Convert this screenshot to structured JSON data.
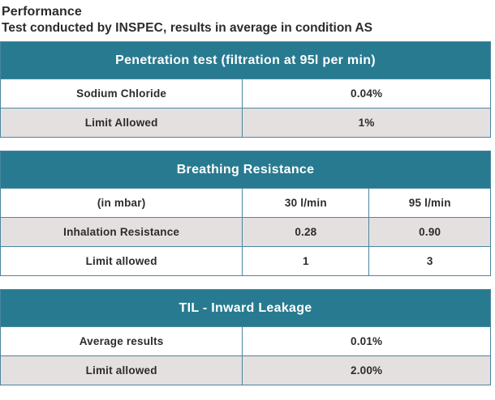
{
  "page": {
    "title": "Performance",
    "subtitle_prefix": "Test conducted by ",
    "subtitle_emphasis": "INSPEC,",
    "subtitle_suffix": " results in average in condition AS"
  },
  "colors": {
    "header_teal": "#287a90",
    "border_blue": "#4a86a0",
    "shaded_row_gray": "#e4e0e0",
    "text_dark": "#2e2b2c",
    "header_text": "#ffffff"
  },
  "tables": [
    {
      "title": "Penetration test (filtration at 95l per min)",
      "rows": [
        {
          "cells": [
            "Sodium Chloride",
            "0.04%"
          ],
          "shaded": false
        },
        {
          "cells": [
            "Limit Allowed",
            "1%"
          ],
          "shaded": true
        }
      ]
    },
    {
      "title": "Breathing Resistance",
      "rows": [
        {
          "cells": [
            "(in mbar)",
            "30 l/min",
            "95 l/min"
          ],
          "shaded": false
        },
        {
          "cells": [
            "Inhalation Resistance",
            "0.28",
            "0.90"
          ],
          "shaded": true
        },
        {
          "cells": [
            "Limit allowed",
            "1",
            "3"
          ],
          "shaded": false
        }
      ]
    },
    {
      "title": "TIL - Inward Leakage",
      "rows": [
        {
          "cells": [
            "Average results",
            "0.01%"
          ],
          "shaded": false
        },
        {
          "cells": [
            "Limit allowed",
            "2.00%"
          ],
          "shaded": true
        }
      ]
    }
  ]
}
